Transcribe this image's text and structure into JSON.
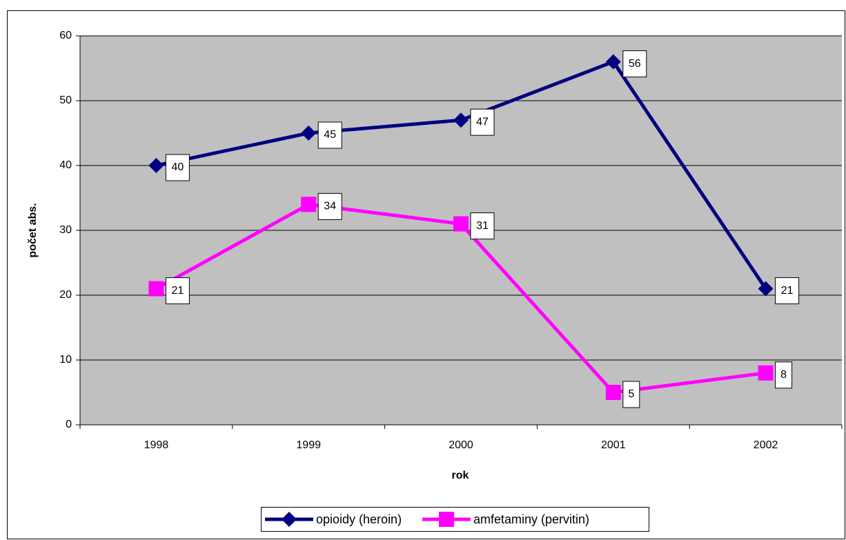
{
  "chart_data": {
    "type": "line",
    "categories": [
      "1998",
      "1999",
      "2000",
      "2001",
      "2002"
    ],
    "series": [
      {
        "name": "opioidy (heroin)",
        "color": "#000080",
        "marker": "diamond",
        "values": [
          40,
          45,
          47,
          56,
          21
        ]
      },
      {
        "name": "amfetaminy (pervitin)",
        "color": "#ff00ff",
        "marker": "square",
        "values": [
          21,
          34,
          31,
          5,
          8
        ]
      }
    ],
    "xlabel": "rok",
    "ylabel": "počet abs.",
    "ylim": [
      0,
      60
    ],
    "yticks": [
      0,
      10,
      20,
      30,
      40,
      50,
      60
    ],
    "grid": true,
    "legend": "bottom",
    "plot_background": "#c0c0c0"
  }
}
